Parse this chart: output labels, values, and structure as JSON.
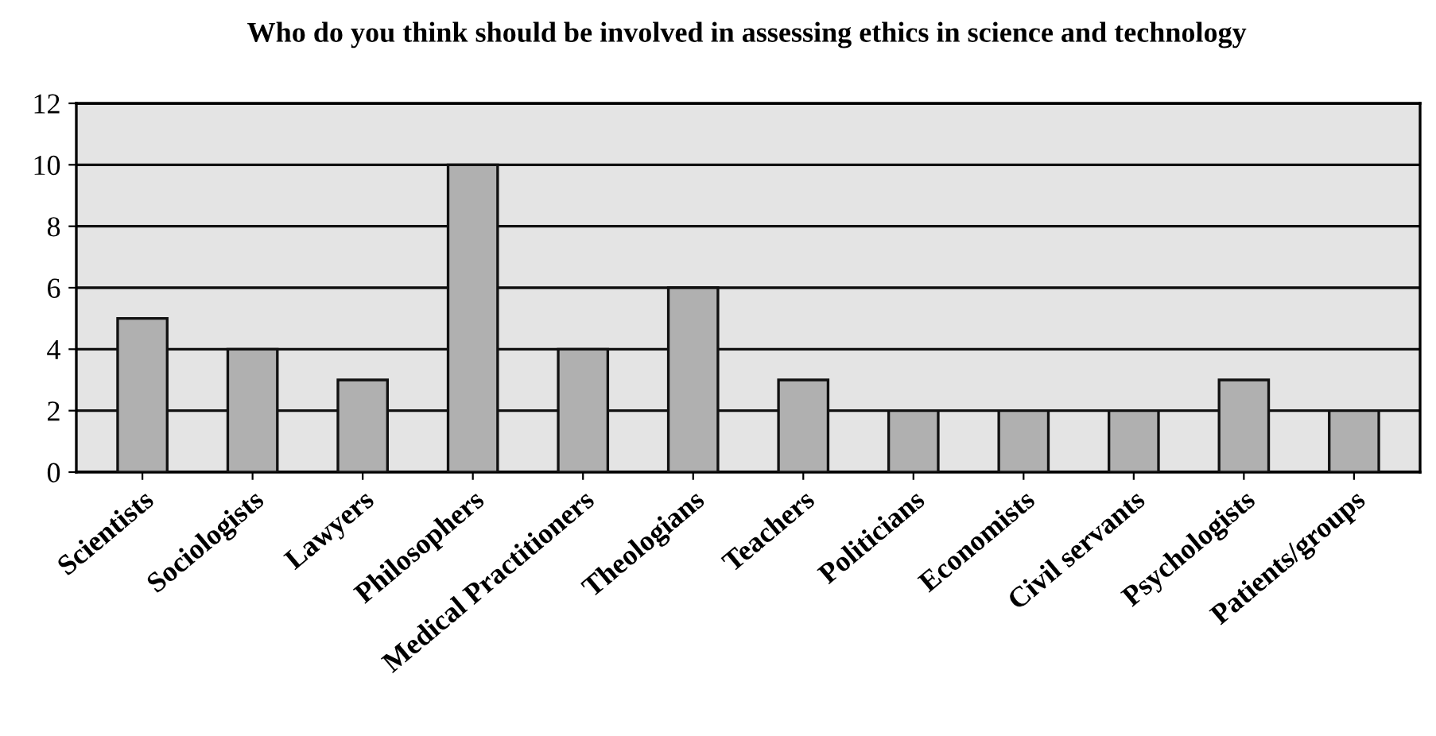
{
  "chart_data": {
    "type": "bar",
    "title": "Who do you think should be involved in assessing ethics in science and technology",
    "categories": [
      "Scientists",
      "Sociologists",
      "Lawyers",
      "Philosophers",
      "Medical Practitioners",
      "Theologians",
      "Teachers",
      "Politicians",
      "Economists",
      "Civil servants",
      "Psychologists",
      "Patients/groups"
    ],
    "values": [
      5,
      4,
      3,
      10,
      4,
      6,
      3,
      2,
      2,
      2,
      3,
      2
    ],
    "color": "#b0b0b0",
    "ylim": [
      0,
      12
    ],
    "yticks": [
      0,
      2,
      4,
      6,
      8,
      10,
      12
    ],
    "grid": "y",
    "legend": false
  }
}
